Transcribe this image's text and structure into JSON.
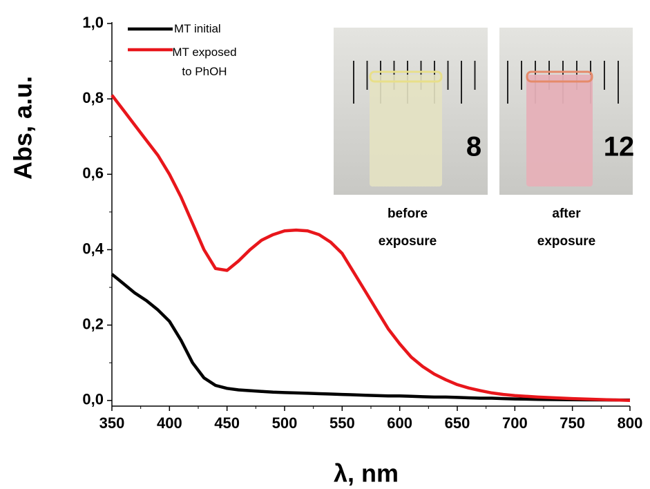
{
  "chart_data": {
    "type": "line",
    "x_label": "λ, nm",
    "y_label": "Abs, a.u.",
    "xlim": [
      350,
      800
    ],
    "ylim": [
      -0.015,
      1.0
    ],
    "xticks": [
      350,
      400,
      450,
      500,
      550,
      600,
      650,
      700,
      750,
      800
    ],
    "yticks": [
      {
        "value": 0,
        "label": "0,0"
      },
      {
        "value": 0.2,
        "label": "0,2"
      },
      {
        "value": 0.4,
        "label": "0,4"
      },
      {
        "value": 0.6,
        "label": "0,6"
      },
      {
        "value": 0.8,
        "label": "0,8"
      },
      {
        "value": 1,
        "label": "1,0"
      }
    ],
    "legend": "top-left",
    "x": [
      350,
      360,
      370,
      380,
      390,
      400,
      410,
      420,
      430,
      440,
      450,
      460,
      470,
      480,
      490,
      500,
      510,
      520,
      530,
      540,
      550,
      560,
      570,
      580,
      590,
      600,
      610,
      620,
      630,
      640,
      650,
      660,
      670,
      680,
      690,
      700,
      720,
      750,
      800
    ],
    "series": [
      {
        "name": "MT initial",
        "color": "#000000",
        "values": [
          0.335,
          0.31,
          0.285,
          0.265,
          0.24,
          0.21,
          0.16,
          0.1,
          0.06,
          0.04,
          0.032,
          0.028,
          0.026,
          0.024,
          0.022,
          0.021,
          0.02,
          0.019,
          0.018,
          0.017,
          0.016,
          0.015,
          0.014,
          0.013,
          0.012,
          0.012,
          0.011,
          0.01,
          0.009,
          0.009,
          0.008,
          0.007,
          0.006,
          0.006,
          0.005,
          0.004,
          0.003,
          0.002,
          0.001
        ]
      },
      {
        "name": "MT exposed to PhOH",
        "color": "#e8161b",
        "values": [
          0.81,
          0.77,
          0.73,
          0.69,
          0.65,
          0.6,
          0.54,
          0.47,
          0.4,
          0.35,
          0.345,
          0.37,
          0.4,
          0.425,
          0.44,
          0.45,
          0.452,
          0.45,
          0.44,
          0.42,
          0.39,
          0.34,
          0.29,
          0.24,
          0.19,
          0.15,
          0.115,
          0.09,
          0.07,
          0.055,
          0.042,
          0.033,
          0.026,
          0.02,
          0.016,
          0.013,
          0.009,
          0.005,
          0
        ]
      }
    ],
    "insets": [
      {
        "scale_label": "8",
        "caption": "before exposure"
      },
      {
        "scale_label": "12",
        "caption": "after exposure"
      }
    ]
  }
}
